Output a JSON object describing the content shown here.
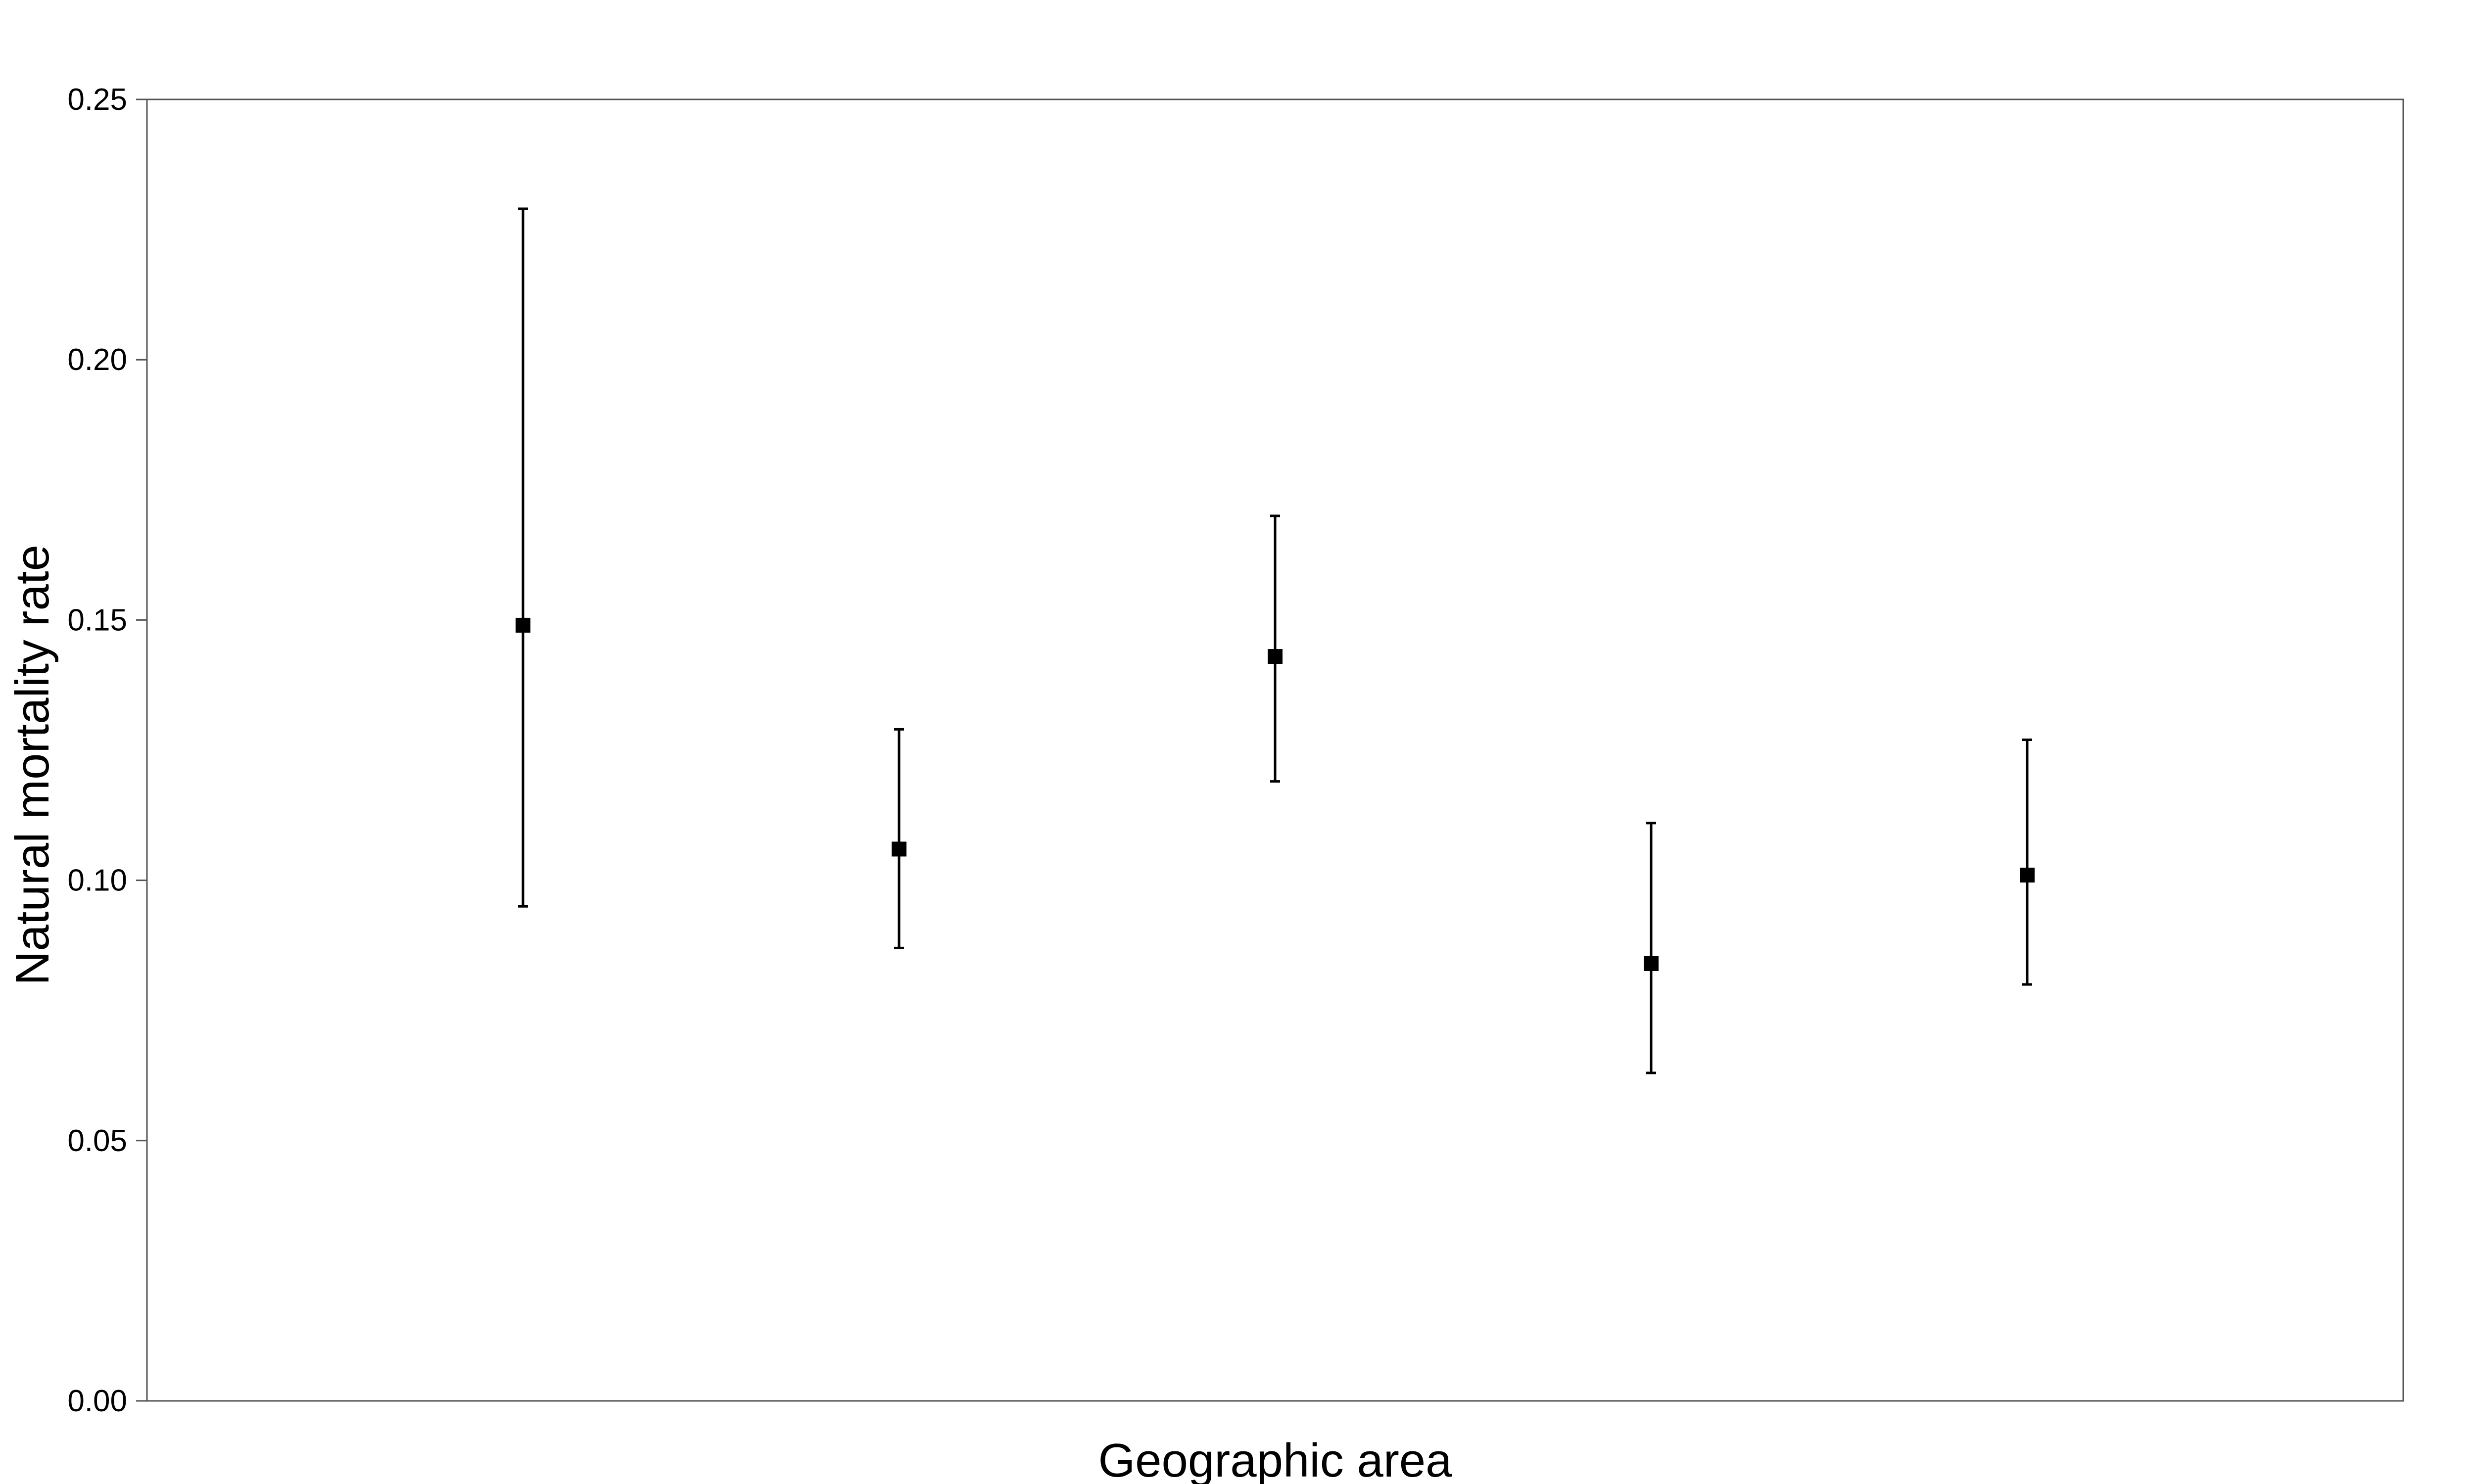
{
  "chart_data": {
    "type": "scatter",
    "title": "",
    "xlabel": "Geographic area",
    "ylabel": "Natural mortality rate",
    "ylim": [
      0,
      0.25
    ],
    "yticks": [
      "0.00",
      "0.05",
      "0.10",
      "0.15",
      "0.20",
      "0.25"
    ],
    "ytick_values": [
      0,
      0.05,
      0.1,
      0.15,
      0.2,
      0.25
    ],
    "x": [
      1,
      2,
      3,
      4,
      5
    ],
    "xlim": [
      0,
      6
    ],
    "series": [
      {
        "values": [
          0.149,
          0.106,
          0.143,
          0.084,
          0.101
        ],
        "lower": [
          0.095,
          0.087,
          0.119,
          0.063,
          0.08
        ],
        "upper": [
          0.229,
          0.129,
          0.17,
          0.111,
          0.127
        ]
      }
    ],
    "grid": false,
    "legend": "none",
    "marker": "square",
    "colors": {
      "marker": "#000000",
      "frame": "#555555"
    }
  }
}
